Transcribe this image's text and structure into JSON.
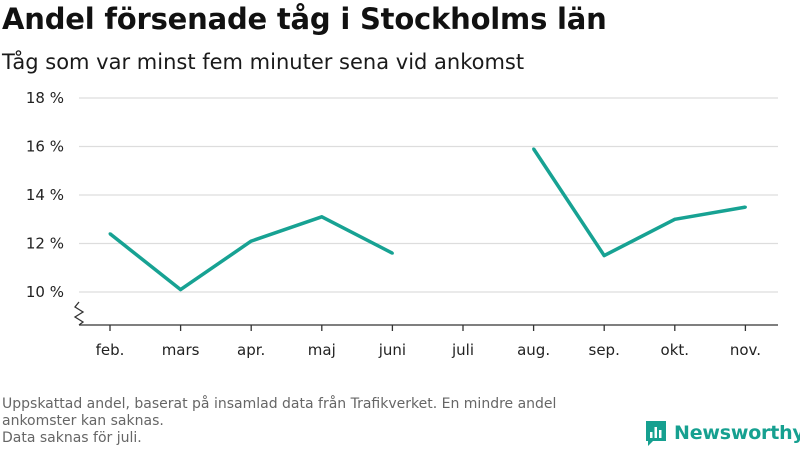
{
  "header": {
    "title": "Andel försenade tåg i Stockholms län",
    "subtitle": "Tåg som var minst fem minuter sena vid ankomst"
  },
  "footer": {
    "note_line1": "Uppskattad andel, baserat på insamlad data från Trafikverket. En mindre andel ankomster kan saknas.",
    "note_line2": "Data saknas för juli."
  },
  "brand": {
    "name": "Newsworthy",
    "icon": "bar-chart-logo-icon",
    "color": "#16a090"
  },
  "chart_data": {
    "type": "line",
    "title": "Andel försenade tåg i Stockholms län",
    "subtitle": "Tåg som var minst fem minuter sena vid ankomst",
    "categories": [
      "feb.",
      "mars",
      "apr.",
      "maj",
      "juni",
      "juli",
      "aug.",
      "sep.",
      "okt.",
      "nov."
    ],
    "series": [
      {
        "values": [
          12.4,
          10.1,
          12.1,
          13.1,
          11.6,
          null,
          15.9,
          11.5,
          13.0,
          13.5
        ],
        "color": "#17a293"
      }
    ],
    "yticks": [
      10,
      12,
      14,
      16,
      18
    ],
    "ytick_labels": [
      "10 %",
      "12 %",
      "14 %",
      "16 %",
      "18 %"
    ],
    "ylim": [
      8.5,
      18
    ],
    "axis_break": true,
    "grid": true,
    "xlabel": "",
    "ylabel": ""
  }
}
